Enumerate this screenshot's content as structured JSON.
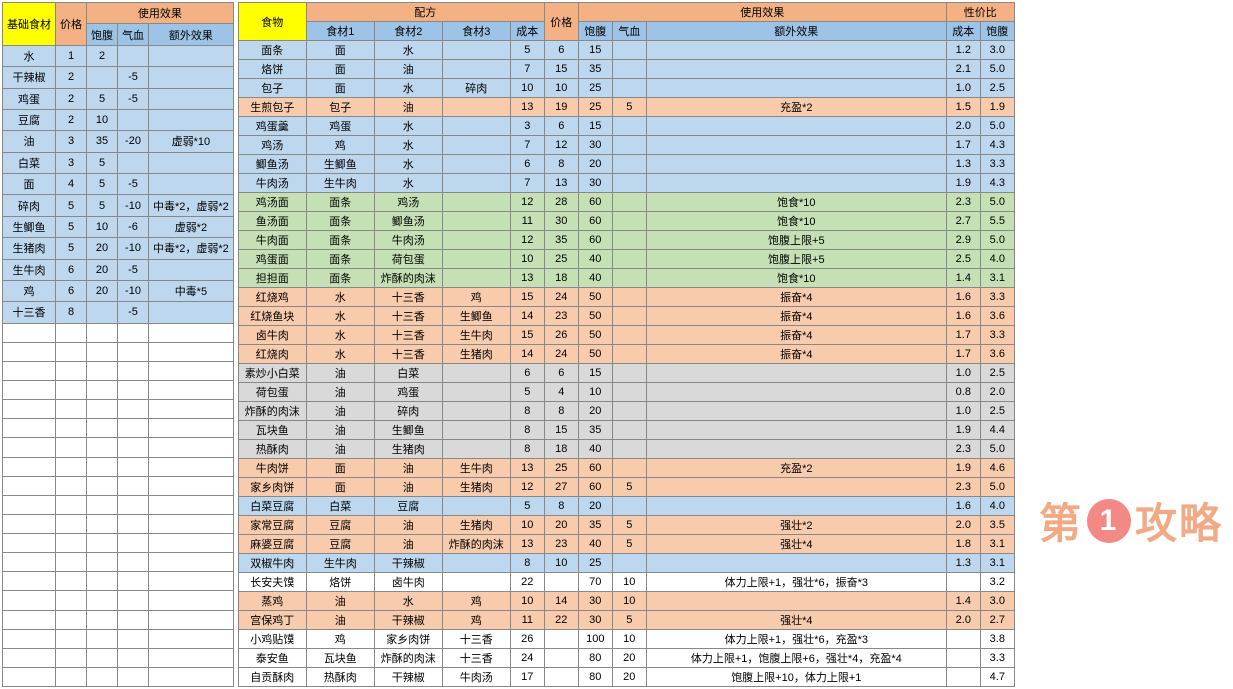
{
  "left": {
    "h1": [
      "基础食材",
      "价格",
      "使用效果"
    ],
    "h2": [
      "饱腹",
      "气血",
      "额外效果"
    ],
    "rows": [
      {
        "c": "r-blue",
        "v": [
          "水",
          "1",
          "2",
          "",
          ""
        ]
      },
      {
        "c": "r-blue",
        "v": [
          "干辣椒",
          "2",
          "",
          "-5",
          ""
        ]
      },
      {
        "c": "r-blue",
        "v": [
          "鸡蛋",
          "2",
          "5",
          "-5",
          ""
        ]
      },
      {
        "c": "r-blue",
        "v": [
          "豆腐",
          "2",
          "10",
          "",
          ""
        ]
      },
      {
        "c": "r-blue",
        "v": [
          "油",
          "3",
          "35",
          "-20",
          "虚弱*10"
        ]
      },
      {
        "c": "r-blue",
        "v": [
          "白菜",
          "3",
          "5",
          "",
          ""
        ]
      },
      {
        "c": "r-blue",
        "v": [
          "面",
          "4",
          "5",
          "-5",
          ""
        ]
      },
      {
        "c": "r-blue",
        "v": [
          "碎肉",
          "5",
          "5",
          "-10",
          "中毒*2，虚弱*2"
        ]
      },
      {
        "c": "r-blue",
        "v": [
          "生鲫鱼",
          "5",
          "10",
          "-6",
          "虚弱*2"
        ]
      },
      {
        "c": "r-blue",
        "v": [
          "生猪肉",
          "5",
          "20",
          "-10",
          "中毒*2，虚弱*2"
        ]
      },
      {
        "c": "r-blue",
        "v": [
          "生牛肉",
          "6",
          "20",
          "-5",
          ""
        ]
      },
      {
        "c": "r-blue",
        "v": [
          "鸡",
          "6",
          "20",
          "-10",
          "中毒*5"
        ]
      },
      {
        "c": "r-blue",
        "v": [
          "十三香",
          "8",
          "",
          "-5",
          ""
        ]
      }
    ],
    "blank_rows": 19
  },
  "right": {
    "h1": [
      "食物",
      "配方",
      "价格",
      "使用效果",
      "性价比"
    ],
    "h2": [
      "食材1",
      "食材2",
      "食材3",
      "成本",
      "饱腹",
      "气血",
      "额外效果",
      "成本",
      "饱腹"
    ],
    "rows": [
      {
        "c": "r-blue",
        "v": [
          "面条",
          "面",
          "水",
          "",
          "5",
          "6",
          "15",
          "",
          "",
          "1.2",
          "3.0"
        ]
      },
      {
        "c": "r-blue",
        "v": [
          "烙饼",
          "面",
          "油",
          "",
          "7",
          "15",
          "35",
          "",
          "",
          "2.1",
          "5.0"
        ]
      },
      {
        "c": "r-blue",
        "v": [
          "包子",
          "面",
          "水",
          "碎肉",
          "10",
          "10",
          "25",
          "",
          "",
          "1.0",
          "2.5"
        ]
      },
      {
        "c": "r-orange",
        "v": [
          "生煎包子",
          "包子",
          "油",
          "",
          "13",
          "19",
          "25",
          "5",
          "充盈*2",
          "1.5",
          "1.9"
        ]
      },
      {
        "c": "r-blue",
        "v": [
          "鸡蛋羹",
          "鸡蛋",
          "水",
          "",
          "3",
          "6",
          "15",
          "",
          "",
          "2.0",
          "5.0"
        ]
      },
      {
        "c": "r-blue",
        "v": [
          "鸡汤",
          "鸡",
          "水",
          "",
          "7",
          "12",
          "30",
          "",
          "",
          "1.7",
          "4.3"
        ]
      },
      {
        "c": "r-blue",
        "v": [
          "鲫鱼汤",
          "生鲫鱼",
          "水",
          "",
          "6",
          "8",
          "20",
          "",
          "",
          "1.3",
          "3.3"
        ]
      },
      {
        "c": "r-blue",
        "v": [
          "牛肉汤",
          "生牛肉",
          "水",
          "",
          "7",
          "13",
          "30",
          "",
          "",
          "1.9",
          "4.3"
        ]
      },
      {
        "c": "r-green",
        "v": [
          "鸡汤面",
          "面条",
          "鸡汤",
          "",
          "12",
          "28",
          "60",
          "",
          "饱食*10",
          "2.3",
          "5.0"
        ]
      },
      {
        "c": "r-green",
        "v": [
          "鱼汤面",
          "面条",
          "鲫鱼汤",
          "",
          "11",
          "30",
          "60",
          "",
          "饱食*10",
          "2.7",
          "5.5"
        ]
      },
      {
        "c": "r-green",
        "v": [
          "牛肉面",
          "面条",
          "牛肉汤",
          "",
          "12",
          "35",
          "60",
          "",
          "饱腹上限+5",
          "2.9",
          "5.0"
        ]
      },
      {
        "c": "r-green",
        "v": [
          "鸡蛋面",
          "面条",
          "荷包蛋",
          "",
          "10",
          "25",
          "40",
          "",
          "饱腹上限+5",
          "2.5",
          "4.0"
        ]
      },
      {
        "c": "r-green",
        "v": [
          "担担面",
          "面条",
          "炸酥的肉沫",
          "",
          "13",
          "18",
          "40",
          "",
          "饱食*10",
          "1.4",
          "3.1"
        ]
      },
      {
        "c": "r-orange",
        "v": [
          "红烧鸡",
          "水",
          "十三香",
          "鸡",
          "15",
          "24",
          "50",
          "",
          "振奋*4",
          "1.6",
          "3.3"
        ]
      },
      {
        "c": "r-orange",
        "v": [
          "红烧鱼块",
          "水",
          "十三香",
          "生鲫鱼",
          "14",
          "23",
          "50",
          "",
          "振奋*4",
          "1.6",
          "3.6"
        ]
      },
      {
        "c": "r-orange",
        "v": [
          "卤牛肉",
          "水",
          "十三香",
          "生牛肉",
          "15",
          "26",
          "50",
          "",
          "振奋*4",
          "1.7",
          "3.3"
        ]
      },
      {
        "c": "r-orange",
        "v": [
          "红烧肉",
          "水",
          "十三香",
          "生猪肉",
          "14",
          "24",
          "50",
          "",
          "振奋*4",
          "1.7",
          "3.6"
        ]
      },
      {
        "c": "r-grey",
        "v": [
          "素炒小白菜",
          "油",
          "白菜",
          "",
          "6",
          "6",
          "15",
          "",
          "",
          "1.0",
          "2.5"
        ]
      },
      {
        "c": "r-grey",
        "v": [
          "荷包蛋",
          "油",
          "鸡蛋",
          "",
          "5",
          "4",
          "10",
          "",
          "",
          "0.8",
          "2.0"
        ]
      },
      {
        "c": "r-grey",
        "v": [
          "炸酥的肉沫",
          "油",
          "碎肉",
          "",
          "8",
          "8",
          "20",
          "",
          "",
          "1.0",
          "2.5"
        ]
      },
      {
        "c": "r-grey",
        "v": [
          "瓦块鱼",
          "油",
          "生鲫鱼",
          "",
          "8",
          "15",
          "35",
          "",
          "",
          "1.9",
          "4.4"
        ]
      },
      {
        "c": "r-grey",
        "v": [
          "热酥肉",
          "油",
          "生猪肉",
          "",
          "8",
          "18",
          "40",
          "",
          "",
          "2.3",
          "5.0"
        ]
      },
      {
        "c": "r-orange",
        "v": [
          "牛肉饼",
          "面",
          "油",
          "生牛肉",
          "13",
          "25",
          "60",
          "",
          "充盈*2",
          "1.9",
          "4.6"
        ]
      },
      {
        "c": "r-orange",
        "v": [
          "家乡肉饼",
          "面",
          "油",
          "生猪肉",
          "12",
          "27",
          "60",
          "5",
          "",
          "2.3",
          "5.0"
        ]
      },
      {
        "c": "r-blue",
        "v": [
          "白菜豆腐",
          "白菜",
          "豆腐",
          "",
          "5",
          "8",
          "20",
          "",
          "",
          "1.6",
          "4.0"
        ]
      },
      {
        "c": "r-orange",
        "v": [
          "家常豆腐",
          "豆腐",
          "油",
          "生猪肉",
          "10",
          "20",
          "35",
          "5",
          "强壮*2",
          "2.0",
          "3.5"
        ]
      },
      {
        "c": "r-orange",
        "v": [
          "麻婆豆腐",
          "豆腐",
          "油",
          "炸酥的肉沫",
          "13",
          "23",
          "40",
          "5",
          "强壮*4",
          "1.8",
          "3.1"
        ]
      },
      {
        "c": "r-blue",
        "v": [
          "双椒牛肉",
          "生牛肉",
          "干辣椒",
          "",
          "8",
          "10",
          "25",
          "",
          "",
          "1.3",
          "3.1"
        ]
      },
      {
        "c": "r-white",
        "v": [
          "长安夫馍",
          "烙饼",
          "卤牛肉",
          "",
          "22",
          "",
          "70",
          "10",
          "体力上限+1，强壮*6，振奋*3",
          "",
          "3.2"
        ]
      },
      {
        "c": "r-orange",
        "v": [
          "蒸鸡",
          "油",
          "水",
          "鸡",
          "10",
          "14",
          "30",
          "10",
          "",
          "1.4",
          "3.0"
        ]
      },
      {
        "c": "r-orange",
        "v": [
          "宫保鸡丁",
          "油",
          "干辣椒",
          "鸡",
          "11",
          "22",
          "30",
          "5",
          "强壮*4",
          "2.0",
          "2.7"
        ]
      },
      {
        "c": "r-white",
        "v": [
          "小鸡贴馍",
          "鸡",
          "家乡肉饼",
          "十三香",
          "26",
          "",
          "100",
          "10",
          "体力上限+1，强壮*6，充盈*3",
          "",
          "3.8"
        ]
      },
      {
        "c": "r-white",
        "v": [
          "泰安鱼",
          "瓦块鱼",
          "炸酥的肉沫",
          "十三香",
          "24",
          "",
          "80",
          "20",
          "体力上限+1，饱腹上限+6，强壮*4，充盈*4",
          "",
          "3.3"
        ]
      },
      {
        "c": "r-white",
        "v": [
          "自贡酥肉",
          "热酥肉",
          "干辣椒",
          "牛肉汤",
          "17",
          "",
          "80",
          "20",
          "饱腹上限+10，体力上限+1",
          "",
          "4.7"
        ]
      }
    ]
  },
  "watermark": {
    "pre": "第",
    "num": "1",
    "post": "攻略"
  }
}
